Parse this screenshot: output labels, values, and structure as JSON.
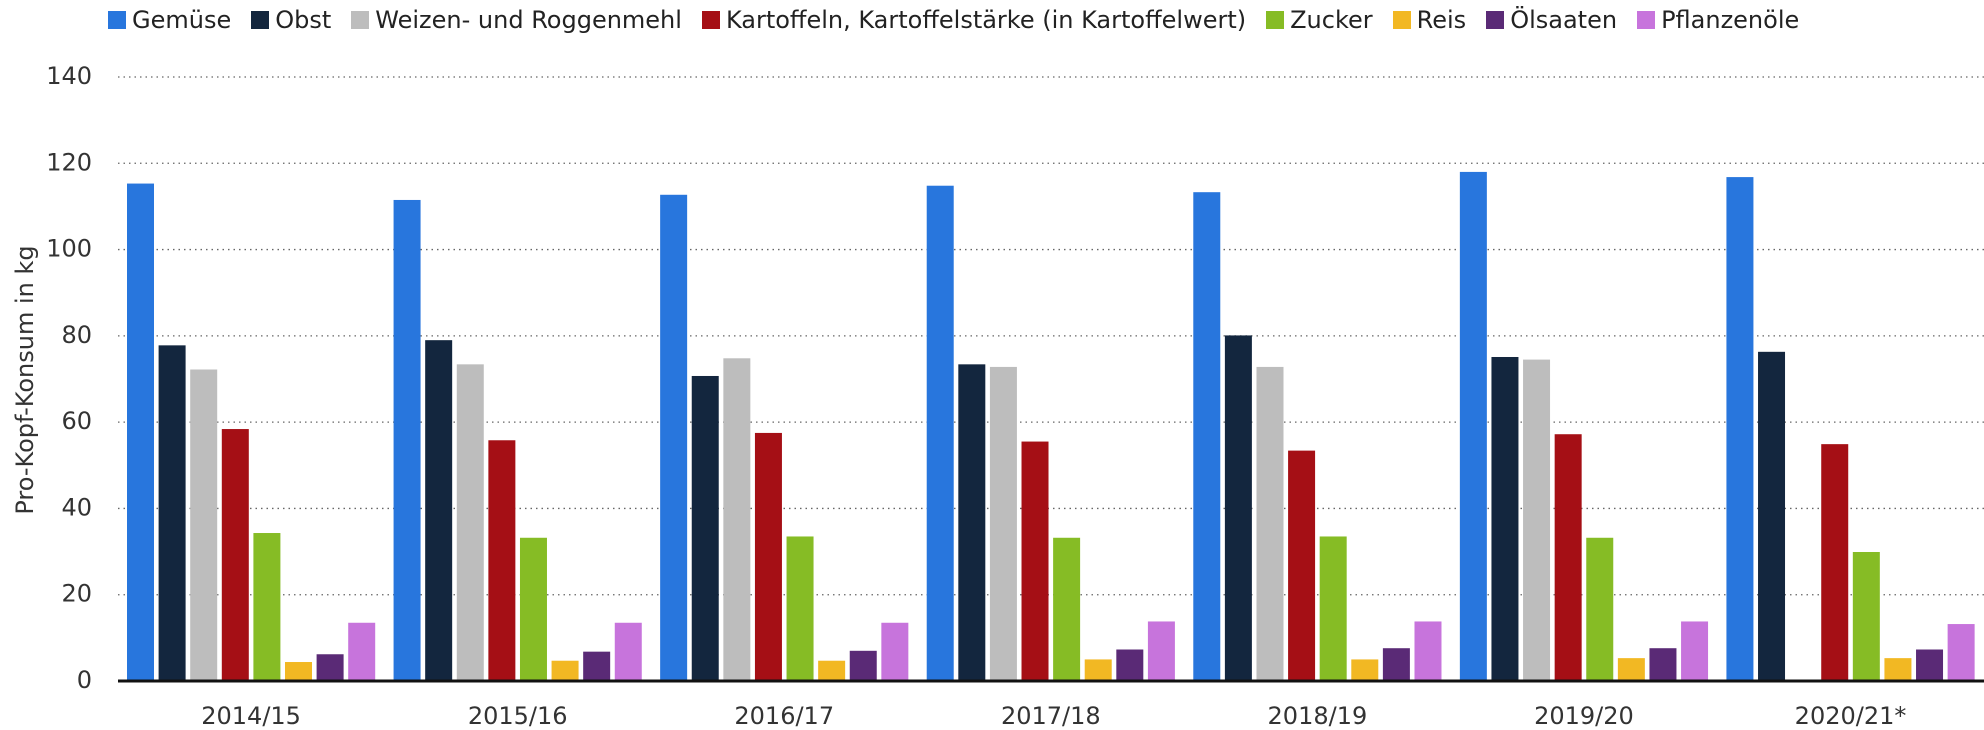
{
  "chart_data": {
    "type": "bar",
    "y_label": "Pro-Kopf-Konsum in kg",
    "categories": [
      "2014/15",
      "2015/16",
      "2016/17",
      "2017/18",
      "2018/19",
      "2019/20",
      "2020/21*"
    ],
    "series": [
      {
        "name": "Gemüse",
        "color": "#2876dd",
        "values": [
          115.3,
          111.5,
          112.7,
          114.8,
          113.3,
          118.0,
          116.8
        ]
      },
      {
        "name": "Obst",
        "color": "#13263e",
        "values": [
          77.8,
          79.0,
          70.7,
          73.4,
          80.1,
          75.1,
          76.3
        ]
      },
      {
        "name": "Weizen- und Roggenmehl",
        "color": "#bdbdbd",
        "values": [
          72.2,
          73.4,
          74.8,
          72.8,
          72.8,
          74.5,
          null
        ]
      },
      {
        "name": "Kartoffeln, Kartoffelstärke (in Kartoffelwert)",
        "color": "#a50f15",
        "values": [
          58.4,
          55.8,
          57.5,
          55.5,
          53.4,
          57.2,
          54.9
        ]
      },
      {
        "name": "Zucker",
        "color": "#86bc25",
        "values": [
          34.3,
          33.2,
          33.5,
          33.2,
          33.5,
          33.2,
          29.9
        ]
      },
      {
        "name": "Reis",
        "color": "#f2b823",
        "values": [
          4.4,
          4.7,
          4.7,
          5.0,
          5.0,
          5.3,
          5.3
        ]
      },
      {
        "name": "Ölsaaten",
        "color": "#5a2a76",
        "values": [
          6.2,
          6.8,
          7.0,
          7.3,
          7.6,
          7.6,
          7.3
        ]
      },
      {
        "name": "Pflanzenöle",
        "color": "#c774dc",
        "values": [
          13.5,
          13.5,
          13.5,
          13.8,
          13.8,
          13.8,
          13.2
        ]
      }
    ],
    "ylim": [
      0,
      140
    ],
    "yticks": [
      0,
      20,
      40,
      60,
      80,
      100,
      120,
      140
    ],
    "grid": true
  }
}
